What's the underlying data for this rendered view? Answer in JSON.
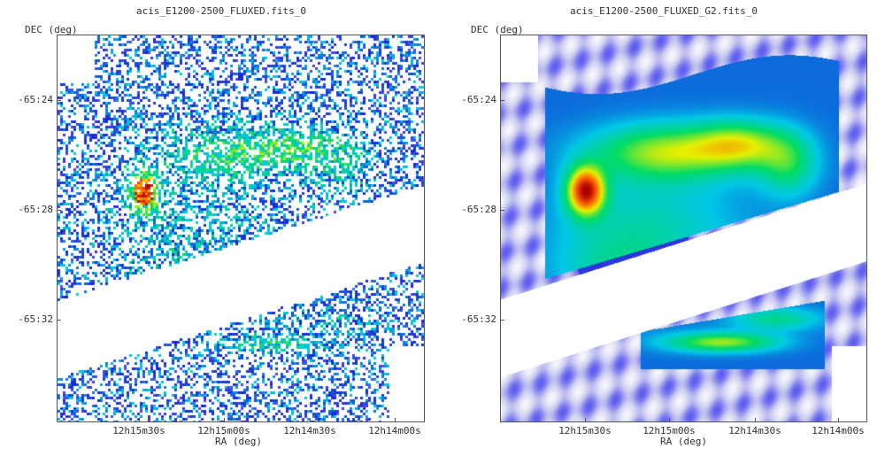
{
  "panels": [
    {
      "title": "acis_E1200-2500_FLUXED.fits_0",
      "y_axis_label": "DEC (deg)",
      "x_axis_label": "RA (deg)",
      "y_ticks": [
        "-65:24",
        "-65:28",
        "-65:32"
      ],
      "x_ticks": [
        "12h15m30s",
        "12h15m00s",
        "12h14m30s",
        "12h14m00s"
      ],
      "render_style": "raw-counts-scatter"
    },
    {
      "title": "acis_E1200-2500_FLUXED_G2.fits_0",
      "y_axis_label": "DEC (deg)",
      "x_axis_label": "RA (deg)",
      "y_ticks": [
        "-65:24",
        "-65:28",
        "-65:32"
      ],
      "x_ticks": [
        "12h15m30s",
        "12h15m00s",
        "12h14m30s",
        "12h14m00s"
      ],
      "render_style": "gaussian-smoothed-heatmap"
    }
  ],
  "colormap": [
    "#ffffff",
    "#c8c8f0",
    "#5a5af0",
    "#1428d2",
    "#00c8e6",
    "#00dc64",
    "#e6f000",
    "#ff6400",
    "#b40000",
    "#000000"
  ]
}
